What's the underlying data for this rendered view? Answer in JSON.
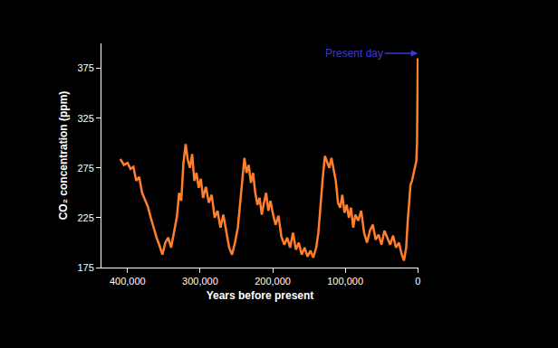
{
  "chart_data": {
    "type": "line",
    "x_label": "Years before present",
    "y_label": "CO₂ concentration (ppm)",
    "color": "#ff7f2a",
    "grid": false,
    "xlim": [
      436000,
      -1000
    ],
    "ylim": [
      175,
      400
    ],
    "xticks": [
      {
        "value": 400000,
        "label": "400,000"
      },
      {
        "value": 300000,
        "label": "300,000"
      },
      {
        "value": 200000,
        "label": "200,000"
      },
      {
        "value": 100000,
        "label": "100,000"
      },
      0
    ],
    "yticks": [
      175,
      225,
      275,
      325,
      375
    ],
    "annotations": [
      {
        "text": "Present day",
        "x": 0,
        "y": 390,
        "color": "#3a3ad6"
      }
    ],
    "x": [
      410000,
      405000,
      400000,
      396000,
      392000,
      388000,
      384000,
      380000,
      376000,
      372000,
      368000,
      364000,
      360000,
      356000,
      352000,
      348000,
      344000,
      340000,
      336000,
      332000,
      329000,
      326000,
      323000,
      320000,
      317000,
      314000,
      311000,
      308000,
      305000,
      302000,
      299000,
      296000,
      292000,
      288000,
      284000,
      280000,
      276000,
      272000,
      268000,
      264000,
      260000,
      256000,
      252000,
      248000,
      245000,
      242000,
      239000,
      236000,
      233000,
      230000,
      227000,
      224000,
      221000,
      218000,
      215000,
      212000,
      209000,
      206000,
      203000,
      200000,
      196000,
      192000,
      188000,
      184000,
      180000,
      176000,
      172000,
      168000,
      164000,
      160000,
      156000,
      152000,
      148000,
      144000,
      140000,
      137000,
      134000,
      131000,
      128000,
      125000,
      122000,
      119000,
      116000,
      113000,
      110000,
      107000,
      104000,
      101000,
      98000,
      95000,
      92000,
      89000,
      86000,
      82000,
      78000,
      74000,
      70000,
      66000,
      62000,
      58000,
      54000,
      50000,
      46000,
      42000,
      38000,
      34000,
      30000,
      26000,
      22000,
      19000,
      16000,
      14000,
      12000,
      10000,
      8000,
      6000,
      4000,
      2000,
      1000,
      500,
      0
    ],
    "values": [
      284,
      278,
      280,
      274,
      276,
      262,
      266,
      250,
      243,
      236,
      225,
      214,
      205,
      197,
      188,
      200,
      205,
      195,
      210,
      226,
      250,
      242,
      280,
      299,
      283,
      275,
      289,
      262,
      270,
      255,
      264,
      245,
      256,
      240,
      248,
      225,
      232,
      215,
      228,
      210,
      195,
      188,
      200,
      215,
      240,
      258,
      285,
      270,
      278,
      260,
      270,
      250,
      238,
      245,
      228,
      240,
      250,
      232,
      242,
      230,
      218,
      227,
      206,
      198,
      205,
      195,
      210,
      193,
      200,
      188,
      195,
      186,
      192,
      185,
      195,
      210,
      240,
      265,
      287,
      280,
      275,
      285,
      272,
      262,
      240,
      235,
      248,
      230,
      238,
      225,
      235,
      215,
      228,
      222,
      232,
      210,
      200,
      212,
      218,
      203,
      208,
      198,
      212,
      205,
      198,
      207,
      195,
      200,
      188,
      182,
      195,
      220,
      240,
      258,
      262,
      268,
      275,
      282,
      300,
      330,
      385
    ]
  }
}
